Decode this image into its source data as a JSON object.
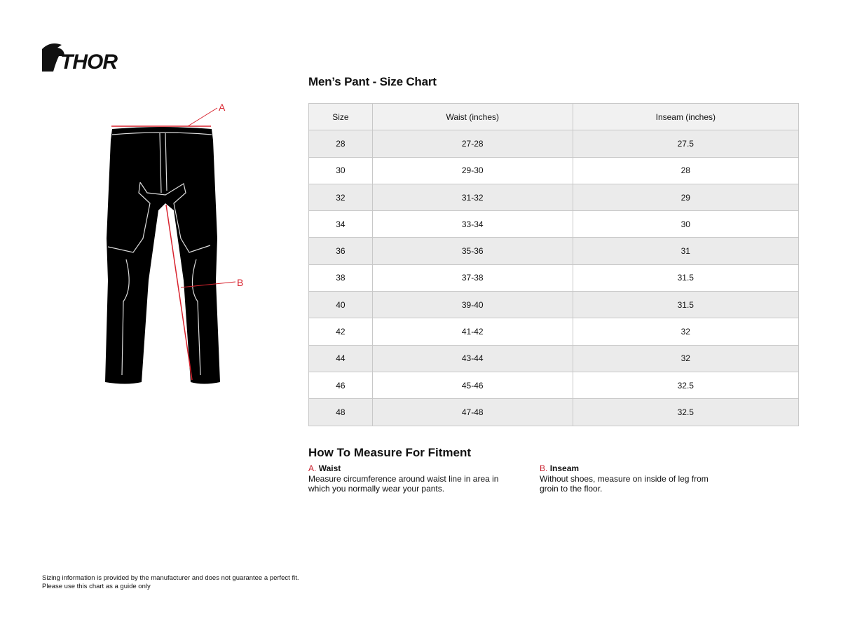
{
  "logo": {
    "text": "THOR"
  },
  "diagram": {
    "label_a": "A",
    "label_b": "B",
    "accent": "#d8242f"
  },
  "title": "Men’s Pant - Size Chart",
  "table": {
    "headers": [
      "Size",
      "Waist (inches)",
      "Inseam (inches)"
    ],
    "rows": [
      [
        "28",
        "27-28",
        "27.5"
      ],
      [
        "30",
        "29-30",
        "28"
      ],
      [
        "32",
        "31-32",
        "29"
      ],
      [
        "34",
        "33-34",
        "30"
      ],
      [
        "36",
        "35-36",
        "31"
      ],
      [
        "38",
        "37-38",
        "31.5"
      ],
      [
        "40",
        "39-40",
        "31.5"
      ],
      [
        "42",
        "41-42",
        "32"
      ],
      [
        "44",
        "43-44",
        "32"
      ],
      [
        "46",
        "45-46",
        "32.5"
      ],
      [
        "48",
        "47-48",
        "32.5"
      ]
    ]
  },
  "howto": {
    "title": "How To Measure For Fitment",
    "items": [
      {
        "letter": "A.",
        "name": "Waist",
        "text": "Measure circumference around waist line in area in which you normally wear your pants."
      },
      {
        "letter": "B.",
        "name": "Inseam",
        "text": "Without shoes, measure on inside of leg from groin to the floor."
      }
    ]
  },
  "footer": {
    "line1": "Sizing information is provided by the manufacturer and does not guarantee a perfect fit.",
    "line2": "Please use this chart as a guide only"
  }
}
